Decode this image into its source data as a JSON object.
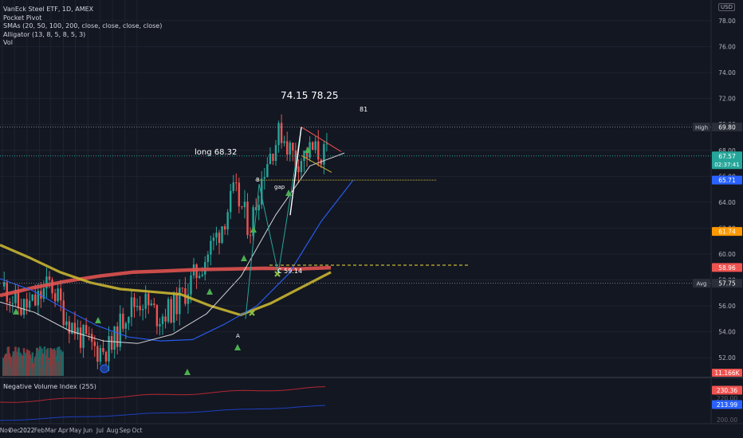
{
  "header": {
    "symbol_line": "VanEck Steel ETF, 1D, AMEX",
    "indicators": [
      "Pocket Pivot",
      "SMAs (20, 50, 100, 200, close, close, close, close)",
      "Alligator (13, 8, 5, 8, 5, 3)",
      "Vol"
    ],
    "currency": "USD"
  },
  "sub_indicator": {
    "label": "Negative Volume Index (255)"
  },
  "chart_data": {
    "type": "candlestick",
    "title": "VanEck Steel ETF, 1D, AMEX",
    "x_tick_labels": [
      "Nov",
      "Dec",
      "2022",
      "Feb",
      "Mar",
      "Apr",
      "May",
      "Jun",
      "Jul",
      "Aug",
      "Sep",
      "Oct"
    ],
    "y_tick_labels": [
      "78.00",
      "76.00",
      "74.00",
      "72.00",
      "70.00",
      "68.00",
      "66.00",
      "64.00",
      "62.00",
      "60.00",
      "58.00",
      "56.00",
      "54.00",
      "52.00"
    ],
    "price_axis": {
      "min": 50.6,
      "max": 79.6
    },
    "nvi_axis_ticks": [
      "220.00",
      "200.00"
    ],
    "candles_summary": {
      "period": "Nov 2021 - Apr 2022",
      "approx_closes": [
        57.5,
        55.8,
        56.2,
        57.8,
        55.2,
        53.6,
        52.6,
        52.8,
        55.8,
        56.5,
        55.2,
        55.8,
        57.5,
        59.5,
        61.8,
        64.8,
        62.0,
        67.0,
        69.5,
        67.2,
        68.0,
        67.57
      ]
    },
    "series": [
      {
        "name": "SMA 200",
        "color": "#e0524f",
        "values": [
          56.8,
          57.4,
          57.9,
          58.3,
          58.6,
          58.7,
          58.8,
          58.85,
          58.9,
          58.85,
          58.95
        ]
      },
      {
        "name": "SMA 100",
        "color": "#c8b531",
        "values": [
          60.7,
          59.7,
          58.6,
          57.8,
          57.3,
          57.1,
          56.9,
          56.0,
          55.3,
          56.2,
          57.4,
          58.6
        ]
      },
      {
        "name": "SMA 50",
        "color": "#2962ff",
        "values": [
          58.1,
          57.2,
          55.8,
          54.5,
          53.6,
          53.3,
          53.4,
          54.6,
          56.0,
          58.5,
          62.5,
          65.71
        ]
      },
      {
        "name": "SMA 20",
        "color": "#e8e8e8",
        "values": [
          56.3,
          55.5,
          54.1,
          53.3,
          53.1,
          53.8,
          55.4,
          58.3,
          63.0,
          66.8,
          67.8
        ]
      }
    ],
    "annotations": {
      "targets": "74.15  78.25",
      "target_extra": "81",
      "entry_note": "long 68.32",
      "gap_label": "gap",
      "point_a": "A",
      "point_b": "B",
      "point_c": "C 59.14"
    },
    "horizontal_levels": [
      {
        "label": "High",
        "value": "69.80",
        "color": "#2a2e39"
      },
      {
        "label": "",
        "value": "67.57",
        "sub": "02:37:41",
        "color": "#26a69a"
      },
      {
        "label": "",
        "value": "65.71",
        "color": "#2962ff"
      },
      {
        "label": "",
        "value": "61.74",
        "color": "#ff9800"
      },
      {
        "label": "",
        "value": "58.96",
        "color": "#ef5350"
      },
      {
        "label": "Avg",
        "value": "57.75",
        "color": "#2a2e39"
      }
    ],
    "volume_label": "11.166K",
    "nvi_labels": [
      {
        "value": "230.36",
        "color": "#ef5350"
      },
      {
        "value": "213.99",
        "color": "#2962ff"
      }
    ]
  }
}
